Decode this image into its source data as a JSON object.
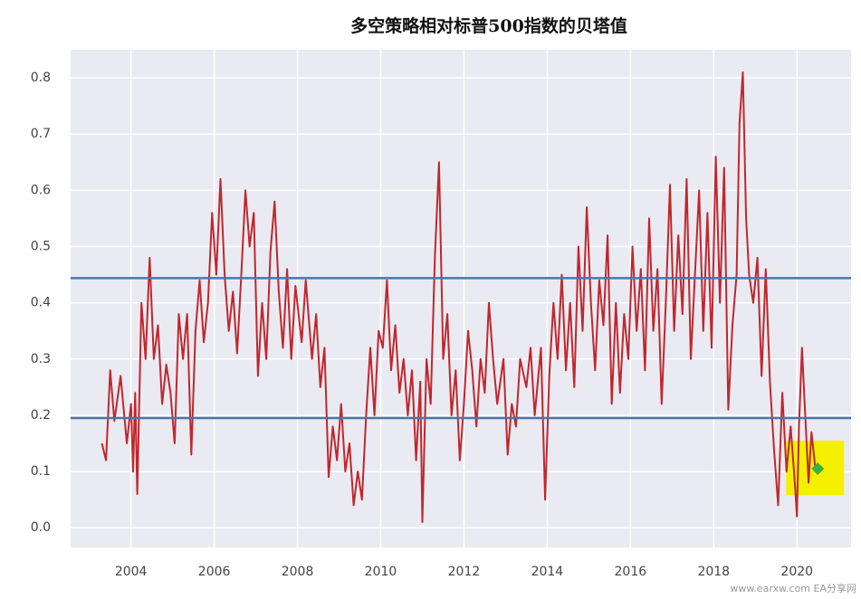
{
  "chart_data": {
    "type": "line",
    "title": "多空策略相对标普500指数的贝塔值",
    "x": [
      2003.3,
      2003.4,
      2003.5,
      2003.6,
      2003.75,
      2003.9,
      2004.0,
      2004.05,
      2004.1,
      2004.15,
      2004.25,
      2004.35,
      2004.45,
      2004.55,
      2004.65,
      2004.75,
      2004.85,
      2004.95,
      2005.05,
      2005.15,
      2005.25,
      2005.35,
      2005.45,
      2005.55,
      2005.65,
      2005.75,
      2005.85,
      2005.95,
      2006.05,
      2006.15,
      2006.25,
      2006.35,
      2006.45,
      2006.55,
      2006.65,
      2006.75,
      2006.85,
      2006.95,
      2007.05,
      2007.15,
      2007.25,
      2007.35,
      2007.45,
      2007.55,
      2007.65,
      2007.75,
      2007.85,
      2007.95,
      2008.1,
      2008.2,
      2008.35,
      2008.45,
      2008.55,
      2008.65,
      2008.75,
      2008.85,
      2008.95,
      2009.05,
      2009.15,
      2009.25,
      2009.35,
      2009.45,
      2009.55,
      2009.65,
      2009.75,
      2009.85,
      2009.95,
      2010.05,
      2010.15,
      2010.25,
      2010.35,
      2010.45,
      2010.55,
      2010.65,
      2010.75,
      2010.85,
      2010.95,
      2011.0,
      2011.1,
      2011.2,
      2011.3,
      2011.4,
      2011.5,
      2011.6,
      2011.7,
      2011.8,
      2011.9,
      2012.0,
      2012.1,
      2012.2,
      2012.3,
      2012.4,
      2012.5,
      2012.6,
      2012.7,
      2012.8,
      2012.95,
      2013.05,
      2013.15,
      2013.25,
      2013.35,
      2013.5,
      2013.6,
      2013.7,
      2013.85,
      2013.95,
      2014.05,
      2014.15,
      2014.25,
      2014.35,
      2014.45,
      2014.55,
      2014.65,
      2014.75,
      2014.85,
      2014.95,
      2015.05,
      2015.15,
      2015.25,
      2015.35,
      2015.45,
      2015.55,
      2015.65,
      2015.75,
      2015.85,
      2015.95,
      2016.05,
      2016.15,
      2016.25,
      2016.35,
      2016.45,
      2016.55,
      2016.65,
      2016.75,
      2016.85,
      2016.95,
      2017.05,
      2017.15,
      2017.25,
      2017.35,
      2017.45,
      2017.55,
      2017.65,
      2017.75,
      2017.85,
      2017.95,
      2018.05,
      2018.15,
      2018.25,
      2018.35,
      2018.45,
      2018.55,
      2018.62,
      2018.7,
      2018.78,
      2018.85,
      2018.95,
      2019.05,
      2019.15,
      2019.25,
      2019.35,
      2019.45,
      2019.55,
      2019.65,
      2019.75,
      2019.85,
      2019.95,
      2020.0,
      2020.05,
      2020.12,
      2020.2,
      2020.28,
      2020.35,
      2020.45
    ],
    "series": [
      {
        "color": "#c0272d",
        "values": [
          0.15,
          0.12,
          0.28,
          0.19,
          0.27,
          0.15,
          0.22,
          0.1,
          0.24,
          0.06,
          0.4,
          0.3,
          0.48,
          0.3,
          0.36,
          0.22,
          0.29,
          0.24,
          0.15,
          0.38,
          0.3,
          0.38,
          0.13,
          0.35,
          0.44,
          0.33,
          0.4,
          0.56,
          0.45,
          0.62,
          0.45,
          0.35,
          0.42,
          0.31,
          0.45,
          0.6,
          0.5,
          0.56,
          0.27,
          0.4,
          0.3,
          0.49,
          0.58,
          0.42,
          0.32,
          0.46,
          0.3,
          0.43,
          0.33,
          0.44,
          0.3,
          0.38,
          0.25,
          0.32,
          0.09,
          0.18,
          0.12,
          0.22,
          0.1,
          0.15,
          0.04,
          0.1,
          0.05,
          0.2,
          0.32,
          0.2,
          0.35,
          0.32,
          0.44,
          0.28,
          0.36,
          0.24,
          0.3,
          0.2,
          0.28,
          0.12,
          0.26,
          0.01,
          0.3,
          0.22,
          0.48,
          0.65,
          0.3,
          0.38,
          0.2,
          0.28,
          0.12,
          0.22,
          0.35,
          0.28,
          0.18,
          0.3,
          0.24,
          0.4,
          0.3,
          0.22,
          0.3,
          0.13,
          0.22,
          0.18,
          0.3,
          0.25,
          0.32,
          0.2,
          0.32,
          0.05,
          0.27,
          0.4,
          0.3,
          0.45,
          0.28,
          0.4,
          0.25,
          0.5,
          0.35,
          0.57,
          0.4,
          0.28,
          0.44,
          0.36,
          0.52,
          0.22,
          0.4,
          0.24,
          0.38,
          0.3,
          0.5,
          0.35,
          0.46,
          0.28,
          0.55,
          0.35,
          0.46,
          0.22,
          0.4,
          0.61,
          0.35,
          0.52,
          0.38,
          0.62,
          0.3,
          0.45,
          0.6,
          0.35,
          0.56,
          0.32,
          0.66,
          0.4,
          0.64,
          0.21,
          0.36,
          0.45,
          0.72,
          0.81,
          0.55,
          0.45,
          0.4,
          0.48,
          0.27,
          0.46,
          0.26,
          0.14,
          0.04,
          0.24,
          0.1,
          0.18,
          0.08,
          0.02,
          0.18,
          0.32,
          0.2,
          0.08,
          0.17,
          0.1
        ]
      }
    ],
    "xlim": [
      2002.55,
      2021.3
    ],
    "ylim": [
      -0.035,
      0.85
    ],
    "xticks": [
      2004,
      2006,
      2008,
      2010,
      2012,
      2014,
      2016,
      2018,
      2020
    ],
    "yticks": [
      {
        "value": 0,
        "label": "0.0"
      },
      0.1,
      0.2,
      0.3,
      0.4,
      0.5,
      0.6,
      0.7,
      0.8
    ],
    "grid": true,
    "hlines": [
      {
        "value": 0.444,
        "color": "#4a76a8"
      },
      {
        "value": 0.195,
        "color": "#4a76a8"
      }
    ],
    "highlight": {
      "xlim": [
        2019.74,
        2021.13
      ],
      "ylim": [
        0.058,
        0.155
      ],
      "color": "#f5f000"
    },
    "marker": {
      "x": 2020.5,
      "y": 0.105,
      "color": "#3cb043"
    },
    "watermark": "www.earxw.com   EA分享网"
  }
}
